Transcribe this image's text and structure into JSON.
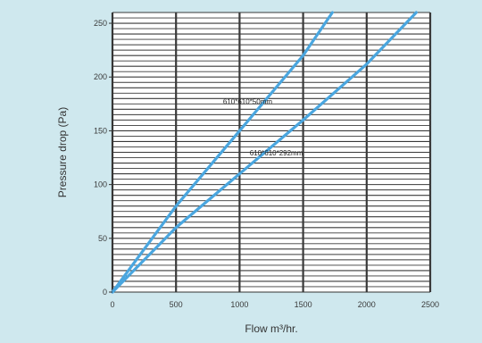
{
  "chart_data": {
    "type": "line",
    "xlabel": "Flow m³/hr.",
    "ylabel": "Pressure drop (Pa)",
    "xlim": [
      0,
      2500
    ],
    "ylim": [
      0,
      260
    ],
    "x_ticks": [
      "0",
      "500",
      "1000",
      "1500",
      "2000",
      "2500"
    ],
    "y_ticks": [
      "0",
      "50",
      "100",
      "150",
      "200",
      "250"
    ],
    "grid": true,
    "series": [
      {
        "name": "610*610*50mm",
        "x": [
          0,
          500,
          1000,
          1500,
          1730
        ],
        "y": [
          0,
          80,
          150,
          220,
          260
        ]
      },
      {
        "name": "610*610*292mm",
        "x": [
          0,
          500,
          1000,
          1500,
          2000,
          2390
        ],
        "y": [
          0,
          60,
          110,
          160,
          212,
          260
        ]
      }
    ]
  },
  "colors": {
    "panel": "#cfe8ee",
    "plot": "#ffffff",
    "grid": "#3a3a3a",
    "line": "#4aa6df"
  }
}
